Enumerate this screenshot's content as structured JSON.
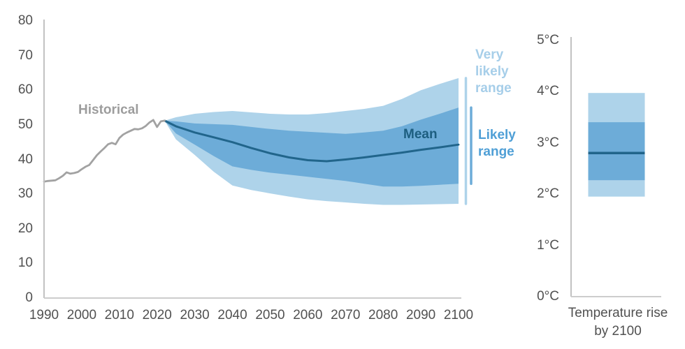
{
  "colors": {
    "background": "#ffffff",
    "very_likely_band": "#aed3ea",
    "likely_band": "#6dacd8",
    "mean_line": "#21658b",
    "historical_line": "#a2a2a2",
    "y_axis_line": "#c2c2c2",
    "x_axis_line": "#cdcdcd",
    "tick_text": "#515151",
    "historical_label": "#9d9d9d",
    "mean_label": "#1d5e80",
    "very_likely_label": "#a6cee9",
    "likely_label": "#4f9fd6"
  },
  "labels": {
    "historical": "Historical",
    "mean": "Mean",
    "very_likely_range": "Very likely range",
    "likely_range": "Likely range",
    "temp_axis_title": "Temperature rise by 2100"
  },
  "chart_data": [
    {
      "name": "emissions-projection-fan-chart",
      "type": "area",
      "title": "",
      "xlabel": "",
      "ylabel": "",
      "xlim": [
        1990,
        2100
      ],
      "ylim": [
        0,
        80
      ],
      "grid": false,
      "x_ticks": [
        1990,
        2000,
        2010,
        2020,
        2030,
        2040,
        2050,
        2060,
        2070,
        2080,
        2090,
        2100
      ],
      "y_ticks": [
        0,
        10,
        20,
        30,
        40,
        50,
        60,
        70,
        80
      ],
      "historical": {
        "name": "Historical",
        "x": [
          1990,
          1991,
          1992,
          1993,
          1994,
          1995,
          1996,
          1997,
          1998,
          1999,
          2000,
          2001,
          2002,
          2003,
          2004,
          2005,
          2006,
          2007,
          2008,
          2009,
          2010,
          2011,
          2012,
          2013,
          2014,
          2015,
          2016,
          2017,
          2018,
          2019,
          2020,
          2021,
          2022
        ],
        "y": [
          33.6,
          33.8,
          33.9,
          34.0,
          34.6,
          35.3,
          36.3,
          35.9,
          36.1,
          36.4,
          37.2,
          37.9,
          38.4,
          39.8,
          41.2,
          42.3,
          43.3,
          44.4,
          44.8,
          44.4,
          46.2,
          47.2,
          47.8,
          48.3,
          48.8,
          48.7,
          49.0,
          49.7,
          50.7,
          51.4,
          49.4,
          51.0,
          51.2
        ]
      },
      "projection": {
        "x": [
          2022,
          2025,
          2030,
          2035,
          2040,
          2045,
          2050,
          2055,
          2060,
          2065,
          2070,
          2075,
          2080,
          2085,
          2090,
          2095,
          2100
        ],
        "series": [
          {
            "name": "Mean",
            "values": [
              51.2,
              49.6,
              47.8,
              46.4,
              45.0,
              43.3,
              41.8,
              40.6,
              39.8,
              39.5,
              40.0,
              40.6,
              41.3,
              42.0,
              42.8,
              43.5,
              44.3
            ]
          },
          {
            "name": "Likely range upper",
            "values": [
              51.2,
              51.0,
              50.4,
              50.2,
              50.0,
              49.4,
              48.8,
              48.3,
              48.0,
              47.7,
              47.4,
              47.8,
              48.3,
              49.6,
              51.5,
              53.2,
              55.0
            ]
          },
          {
            "name": "Likely range lower",
            "values": [
              51.2,
              47.5,
              44.3,
              41.0,
              38.0,
              37.0,
              36.2,
              35.6,
              35.0,
              34.4,
              33.8,
              33.0,
              32.2,
              32.2,
              32.4,
              32.7,
              33.0
            ]
          },
          {
            "name": "Very likely range upper",
            "values": [
              51.2,
              52.2,
              53.2,
              53.7,
              54.0,
              53.6,
              53.2,
              53.0,
              53.0,
              53.4,
              54.0,
              54.6,
              55.5,
              57.5,
              60.0,
              61.8,
              63.5
            ]
          },
          {
            "name": "Very likely range lower",
            "values": [
              51.2,
              45.8,
              41.3,
              36.5,
              32.5,
              31.2,
              30.2,
              29.3,
              28.5,
              28.0,
              27.6,
              27.2,
              26.9,
              26.9,
              27.0,
              27.1,
              27.2
            ]
          }
        ]
      },
      "end_ranges_2100": {
        "very_likely": [
          27.2,
          63.5
        ],
        "likely": [
          33.0,
          55.0
        ],
        "mean": 44.3
      }
    },
    {
      "name": "temperature-rise-by-2100",
      "type": "bar",
      "title": "Temperature rise by 2100",
      "ylim": [
        0,
        5
      ],
      "y_ticks": [
        "0°C",
        "1°C",
        "2°C",
        "3°C",
        "4°C",
        "5°C"
      ],
      "y_tick_values": [
        0,
        1,
        2,
        3,
        4,
        5
      ],
      "very_likely_range_c": [
        1.95,
        3.97
      ],
      "likely_range_c": [
        2.27,
        3.4
      ],
      "mean_c": 2.8
    }
  ]
}
